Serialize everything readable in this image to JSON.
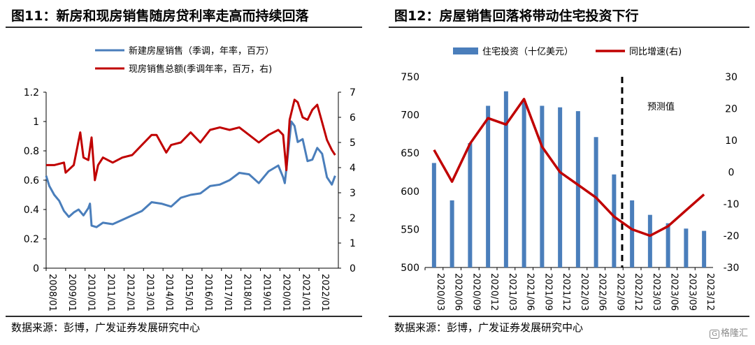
{
  "left": {
    "title": "图11：新房和现房销售随房贷利率走高而持续回落",
    "source": "数据来源：彭博，广发证券发展研究中心",
    "chart_data": {
      "type": "line",
      "title": "图11：新房和现房销售随房贷利率走高而持续回落",
      "xlabel": "",
      "ylabel": "",
      "y_left": {
        "ylim": [
          0,
          1.2
        ],
        "ticks": [
          "0",
          "0.2",
          "0.4",
          "0.6",
          "0.8",
          "1",
          "1.2"
        ]
      },
      "y_right": {
        "ylim": [
          0,
          7
        ],
        "ticks": [
          "0",
          "1",
          "2",
          "3",
          "4",
          "5",
          "6",
          "7"
        ]
      },
      "x_ticks": [
        "2008/01",
        "2009/01",
        "2010/01",
        "2011/01",
        "2012/01",
        "2013/01",
        "2014/01",
        "2015/01",
        "2016/01",
        "2017/01",
        "2018/01",
        "2019/01",
        "2020/01",
        "2021/01",
        "2022/01"
      ],
      "legend_position": "top",
      "grid": false,
      "series": [
        {
          "name": "新建房屋销售（季调，年率，百万）",
          "axis": "left",
          "color": "#4a7ebb",
          "points": [
            [
              "2008/01",
              0.63
            ],
            [
              "2008/03",
              0.56
            ],
            [
              "2008/06",
              0.5
            ],
            [
              "2008/09",
              0.46
            ],
            [
              "2008/12",
              0.39
            ],
            [
              "2009/03",
              0.35
            ],
            [
              "2009/06",
              0.38
            ],
            [
              "2009/09",
              0.4
            ],
            [
              "2009/12",
              0.36
            ],
            [
              "2010/03",
              0.41
            ],
            [
              "2010/04",
              0.44
            ],
            [
              "2010/05",
              0.29
            ],
            [
              "2010/08",
              0.28
            ],
            [
              "2010/12",
              0.31
            ],
            [
              "2011/06",
              0.3
            ],
            [
              "2011/12",
              0.33
            ],
            [
              "2012/06",
              0.36
            ],
            [
              "2012/12",
              0.39
            ],
            [
              "2013/06",
              0.45
            ],
            [
              "2013/12",
              0.44
            ],
            [
              "2014/06",
              0.42
            ],
            [
              "2014/12",
              0.48
            ],
            [
              "2015/06",
              0.5
            ],
            [
              "2015/12",
              0.51
            ],
            [
              "2016/06",
              0.56
            ],
            [
              "2016/12",
              0.57
            ],
            [
              "2017/06",
              0.6
            ],
            [
              "2017/12",
              0.65
            ],
            [
              "2018/06",
              0.64
            ],
            [
              "2018/12",
              0.58
            ],
            [
              "2019/06",
              0.66
            ],
            [
              "2019/12",
              0.7
            ],
            [
              "2020/03",
              0.62
            ],
            [
              "2020/04",
              0.58
            ],
            [
              "2020/06",
              0.78
            ],
            [
              "2020/08",
              1.0
            ],
            [
              "2020/10",
              0.97
            ],
            [
              "2020/12",
              0.86
            ],
            [
              "2021/03",
              0.88
            ],
            [
              "2021/06",
              0.73
            ],
            [
              "2021/09",
              0.74
            ],
            [
              "2021/12",
              0.82
            ],
            [
              "2022/03",
              0.78
            ],
            [
              "2022/06",
              0.62
            ],
            [
              "2022/09",
              0.57
            ],
            [
              "2022/11",
              0.63
            ]
          ]
        },
        {
          "name": "现房销售总额(季调年率，百万，右)",
          "axis": "right",
          "color": "#c00000",
          "points": [
            [
              "2008/01",
              4.1
            ],
            [
              "2008/06",
              4.1
            ],
            [
              "2008/12",
              4.2
            ],
            [
              "2009/01",
              3.8
            ],
            [
              "2009/06",
              4.1
            ],
            [
              "2009/10",
              5.4
            ],
            [
              "2009/12",
              4.4
            ],
            [
              "2010/03",
              4.3
            ],
            [
              "2010/05",
              5.2
            ],
            [
              "2010/07",
              3.5
            ],
            [
              "2010/09",
              4.1
            ],
            [
              "2010/12",
              4.4
            ],
            [
              "2011/06",
              4.2
            ],
            [
              "2011/12",
              4.4
            ],
            [
              "2012/06",
              4.5
            ],
            [
              "2012/12",
              4.9
            ],
            [
              "2013/06",
              5.3
            ],
            [
              "2013/09",
              5.3
            ],
            [
              "2014/03",
              4.6
            ],
            [
              "2014/06",
              4.9
            ],
            [
              "2014/12",
              5.0
            ],
            [
              "2015/06",
              5.4
            ],
            [
              "2015/12",
              5.0
            ],
            [
              "2016/06",
              5.5
            ],
            [
              "2016/12",
              5.6
            ],
            [
              "2017/06",
              5.5
            ],
            [
              "2017/12",
              5.6
            ],
            [
              "2018/06",
              5.3
            ],
            [
              "2018/12",
              5.0
            ],
            [
              "2019/06",
              5.3
            ],
            [
              "2019/12",
              5.5
            ],
            [
              "2020/03",
              5.3
            ],
            [
              "2020/05",
              3.9
            ],
            [
              "2020/07",
              5.9
            ],
            [
              "2020/10",
              6.7
            ],
            [
              "2020/12",
              6.6
            ],
            [
              "2021/03",
              6.0
            ],
            [
              "2021/06",
              5.9
            ],
            [
              "2021/09",
              6.3
            ],
            [
              "2021/12",
              6.5
            ],
            [
              "2022/03",
              5.8
            ],
            [
              "2022/06",
              5.1
            ],
            [
              "2022/09",
              4.7
            ],
            [
              "2022/11",
              4.5
            ]
          ]
        }
      ]
    }
  },
  "right": {
    "title": "图12：房屋销售回落将带动住宅投资下行",
    "source": "数据来源：彭博，广发证券发展研究中心",
    "chart_data": {
      "type": "bar",
      "title": "图12：房屋销售回落将带动住宅投资下行",
      "xlabel": "",
      "ylabel": "",
      "categories": [
        "2020/03",
        "2020/06",
        "2020/09",
        "2020/12",
        "2021/03",
        "2021/06",
        "2021/09",
        "2021/12",
        "2022/03",
        "2022/06",
        "2022/09",
        "2022/12",
        "2023/03",
        "2023/06",
        "2023/09",
        "2023/12"
      ],
      "y_left": {
        "ylim": [
          500,
          750
        ],
        "ticks": [
          "500",
          "550",
          "600",
          "650",
          "700",
          "750"
        ]
      },
      "y_right": {
        "ylim": [
          -30,
          30
        ],
        "ticks": [
          "-30",
          "-20",
          "-10",
          "0",
          "10",
          "20",
          "30"
        ]
      },
      "legend_position": "top",
      "grid": false,
      "annotation": "预测值",
      "forecast_start": "2022/12",
      "series": [
        {
          "name": "住宅投资（十亿美元）",
          "type": "bar",
          "axis": "left",
          "color": "#4a7ebb",
          "values": [
            637,
            588,
            663,
            712,
            731,
            718,
            712,
            710,
            705,
            671,
            622,
            588,
            569,
            558,
            551,
            548
          ]
        },
        {
          "name": "同比增速(右)",
          "type": "line",
          "axis": "right",
          "color": "#c00000",
          "values": [
            7,
            -3,
            9,
            17,
            15,
            23,
            8,
            0,
            -4,
            -8,
            -14,
            -18,
            -20,
            -17,
            -12,
            -7
          ]
        }
      ]
    }
  },
  "watermark": {
    "badge": "G",
    "text": "格隆汇"
  }
}
